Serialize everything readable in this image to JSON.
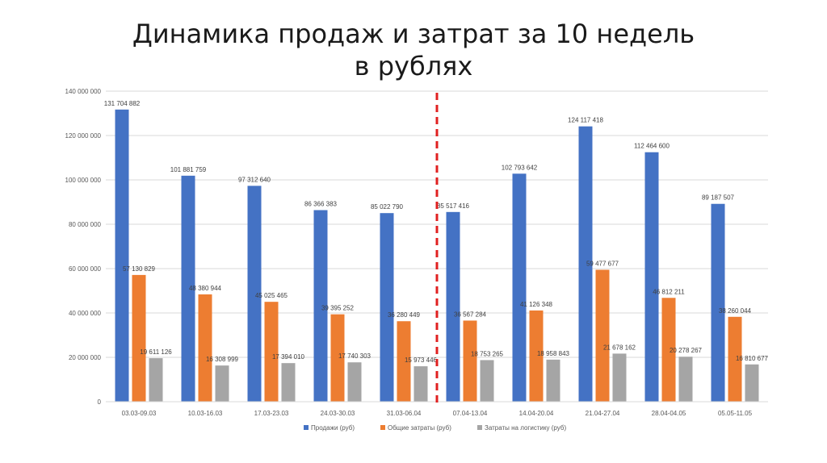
{
  "chart_data": {
    "type": "bar",
    "title": "Динамика продаж и затрат за 10 недель в рублях",
    "xlabel": "",
    "ylabel": "",
    "ylim": [
      0,
      140000000
    ],
    "yticks": [
      0,
      20000000,
      40000000,
      60000000,
      80000000,
      100000000,
      120000000,
      140000000
    ],
    "ytick_labels": [
      "0",
      "20 000 000",
      "40 000 000",
      "60 000 000",
      "80 000 000",
      "100 000 000",
      "120 000 000",
      "140 000 000"
    ],
    "grid": true,
    "legend_position": "bottom",
    "categories": [
      "03.03-09.03",
      "10.03-16.03",
      "17.03-23.03",
      "24.03-30.03",
      "31.03-06.04",
      "07.04-13.04",
      "14.04-20.04",
      "21.04-27.04",
      "28.04-04.05",
      "05.05-11.05"
    ],
    "series": [
      {
        "name": "Продажи (руб)",
        "color": "#4472c4",
        "values": [
          131704882,
          101881759,
          97312640,
          86366383,
          85022790,
          85517416,
          102793642,
          124117418,
          112464600,
          89187507
        ],
        "labels": [
          "131 704 882",
          "101 881 759",
          "97 312 640",
          "86 366 383",
          "85 022 790",
          "85 517 416",
          "102 793 642",
          "124 117 418",
          "112 464 600",
          "89 187 507"
        ]
      },
      {
        "name": "Общие затраты (руб)",
        "color": "#ed7d31",
        "values": [
          57130829,
          48380944,
          45025465,
          39395252,
          36280449,
          36567284,
          41126348,
          59477677,
          46812211,
          38260044
        ],
        "labels": [
          "57 130 829",
          "48 380 944",
          "45 025 465",
          "39 395 252",
          "36 280 449",
          "36 567 284",
          "41 126 348",
          "59 477 677",
          "46 812 211",
          "38 260 044"
        ]
      },
      {
        "name": "Затраты на логистику (руб)",
        "color": "#a5a5a5",
        "values": [
          19611126,
          16308999,
          17394010,
          17740303,
          15973446,
          18753265,
          18958843,
          21678162,
          20278267,
          16810677
        ],
        "labels": [
          "19 611 126",
          "16 308 999",
          "17 394 010",
          "17 740 303",
          "15 973 446",
          "18 753 265",
          "18 958 843",
          "21 678 162",
          "20 278 267",
          "16 810 677"
        ]
      }
    ],
    "annotations": [
      {
        "type": "vertical-dashed-line",
        "between_categories": [
          "31.03-06.04",
          "07.04-13.04"
        ],
        "color": "#e02020"
      }
    ]
  }
}
